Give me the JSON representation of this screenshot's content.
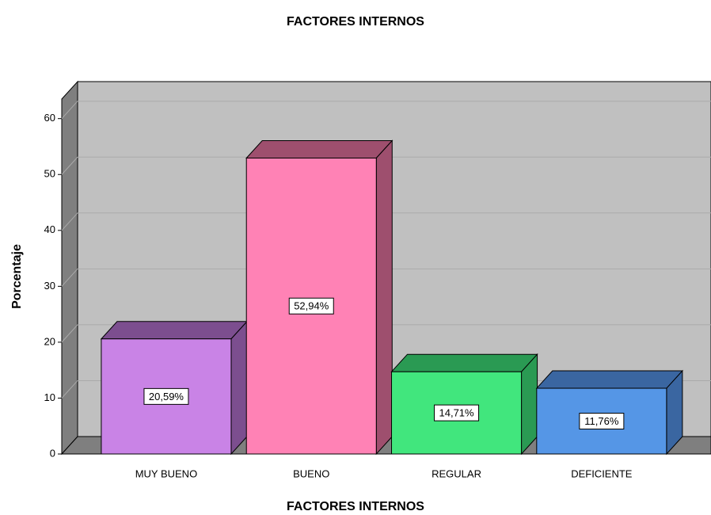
{
  "chart_data": {
    "type": "bar3d",
    "title": "FACTORES INTERNOS",
    "x_label": "FACTORES INTERNOS",
    "y_label": "Porcentaje",
    "categories": [
      "MUY BUENO",
      "BUENO",
      "REGULAR",
      "DEFICIENTE"
    ],
    "values": [
      20.59,
      52.94,
      14.71,
      11.76
    ],
    "value_labels": [
      "20,59%",
      "52,94%",
      "14,71%",
      "11,76%"
    ],
    "colors": [
      "#c983e6",
      "#ff82b5",
      "#41e67d",
      "#5596e6"
    ],
    "side_colors": [
      "#7c4e8f",
      "#9e4f6e",
      "#2a9a53",
      "#3a66a1"
    ],
    "ylim": [
      0,
      63.5
    ],
    "yticks": [
      0,
      10,
      20,
      30,
      40,
      50,
      60
    ],
    "grid": true
  }
}
